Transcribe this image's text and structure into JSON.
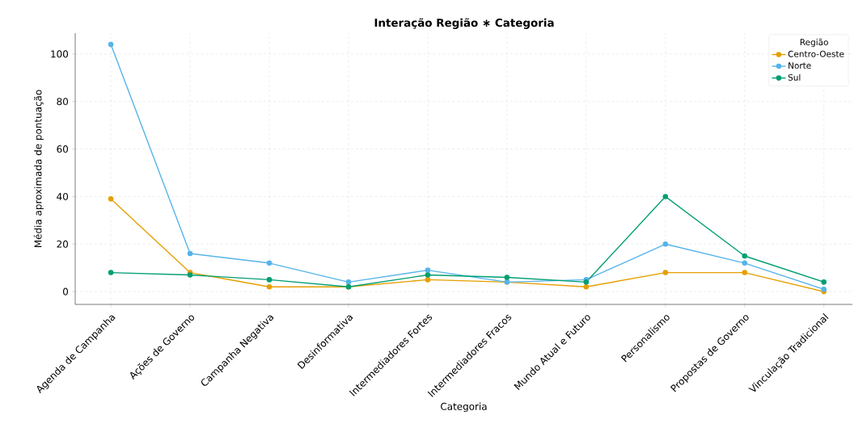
{
  "chart_data": {
    "type": "line",
    "title": "Interação Região ∗ Categoria",
    "xlabel": "Categoria",
    "ylabel": "Média aproximada de pontuação",
    "legend_title": "Região",
    "categories": [
      "Agenda de Campanha",
      "Ações de Governo",
      "Campanha Negativa",
      "Desinformativa",
      "Intermediadores Fortes",
      "Intermediadores Fracos",
      "Mundo Atual e Futuro",
      "Personalismo",
      "Propostas de Governo",
      "Vinculação Tradicional"
    ],
    "series": [
      {
        "name": "Centro-Oeste",
        "color": "#e69f00",
        "values": [
          39,
          8,
          2,
          2,
          5,
          4,
          2,
          8,
          8,
          0
        ]
      },
      {
        "name": "Norte",
        "color": "#56b4e9",
        "values": [
          104,
          16,
          12,
          4,
          9,
          4,
          5,
          20,
          12,
          1
        ]
      },
      {
        "name": "Sul",
        "color": "#009e73",
        "values": [
          8,
          7,
          5,
          2,
          7,
          6,
          4,
          40,
          15,
          4
        ]
      }
    ],
    "ylim": [
      -5.4,
      108.8
    ],
    "yticks": [
      0,
      20,
      40,
      60,
      80,
      100
    ],
    "grid": true,
    "legend": "top right",
    "marker": "circle",
    "line_style": "solid"
  }
}
